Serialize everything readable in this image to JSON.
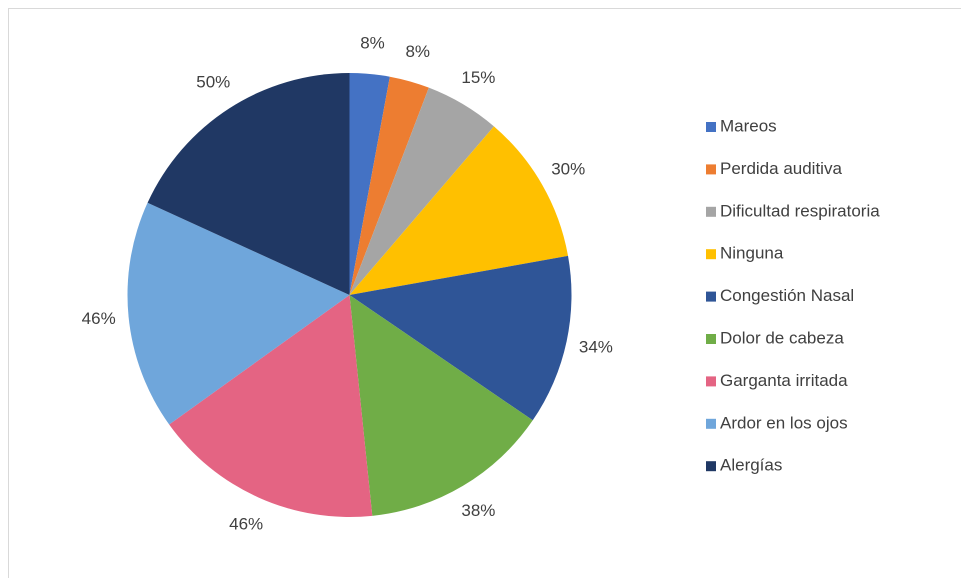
{
  "chart_data": {
    "type": "pie",
    "categories": [
      "Mareos",
      "Perdida auditiva",
      "Dificultad respiratoria",
      "Ninguna",
      "Congestión Nasal",
      "Dolor de cabeza",
      "Garganta irritada",
      "Ardor en los ojos",
      "Alergías"
    ],
    "values": [
      8,
      8,
      15,
      30,
      34,
      38,
      46,
      46,
      50
    ],
    "value_labels": [
      "8%",
      "8%",
      "15%",
      "30%",
      "34%",
      "38%",
      "46%",
      "46%",
      "50%"
    ],
    "colors": [
      "#4472c4",
      "#ed7d31",
      "#a5a5a5",
      "#ffc000",
      "#2f5597",
      "#70ad47",
      "#e46483",
      "#6fa6db",
      "#203864"
    ],
    "legend": "right"
  }
}
